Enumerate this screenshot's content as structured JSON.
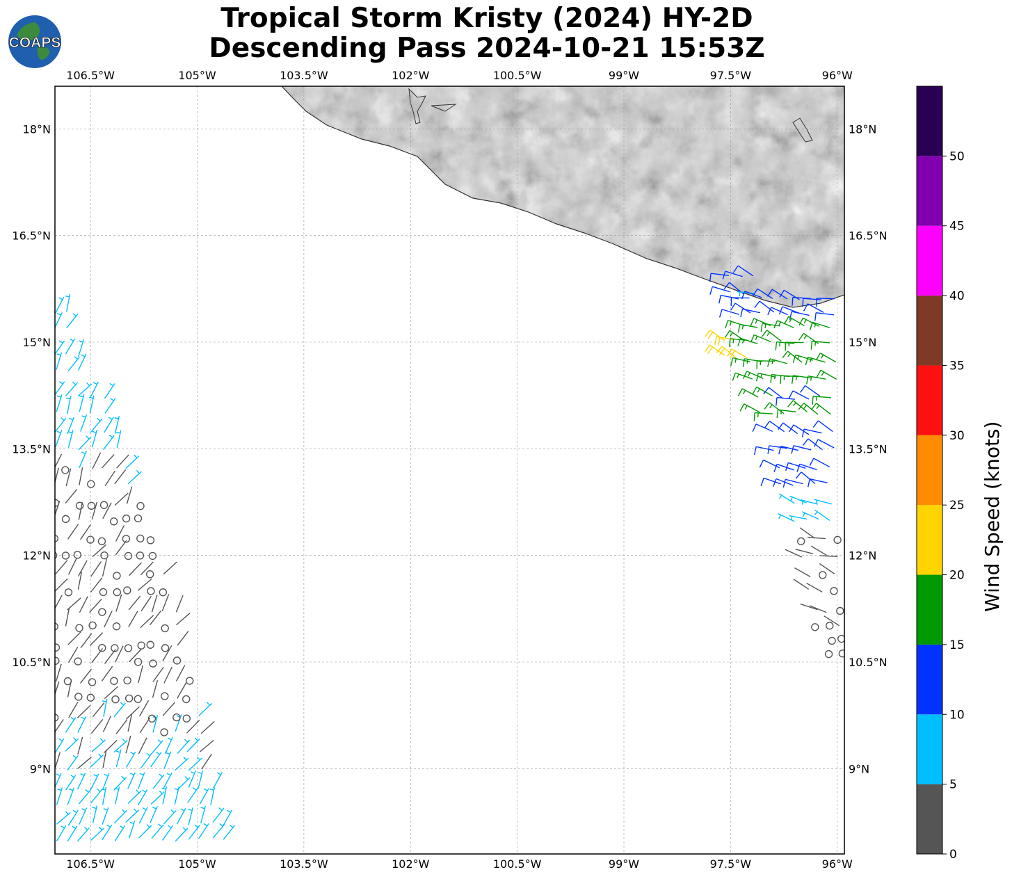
{
  "title": {
    "line1": "Tropical Storm Kristy (2024) HY-2D",
    "line2": "Descending Pass 2024-10-21 15:53Z"
  },
  "logo": {
    "text": "COAPS",
    "icon": "globe-logo-icon"
  },
  "map": {
    "projection": "PlateCarree",
    "lon_range": [
      -107.0,
      -95.9
    ],
    "lat_range": [
      7.8,
      18.6
    ],
    "lon_ticks": [
      {
        "value": -106.5,
        "label": "106.5°W"
      },
      {
        "value": -105.0,
        "label": "105°W"
      },
      {
        "value": -103.5,
        "label": "103.5°W"
      },
      {
        "value": -102.0,
        "label": "102°W"
      },
      {
        "value": -100.5,
        "label": "100.5°W"
      },
      {
        "value": -99.0,
        "label": "99°W"
      },
      {
        "value": -97.5,
        "label": "97.5°W"
      },
      {
        "value": -96.0,
        "label": "96°W"
      }
    ],
    "lat_ticks": [
      {
        "value": 18.0,
        "label": "18°N"
      },
      {
        "value": 16.5,
        "label": "16.5°N"
      },
      {
        "value": 15.0,
        "label": "15°N"
      },
      {
        "value": 13.5,
        "label": "13.5°N"
      },
      {
        "value": 12.0,
        "label": "12°N"
      },
      {
        "value": 10.5,
        "label": "10.5°N"
      },
      {
        "value": 9.0,
        "label": "9°N"
      }
    ],
    "grid": "dashed",
    "terrain": "grayscale relief over land (Mexico)"
  },
  "colorbar": {
    "title": "Wind Speed (knots)",
    "bins": [
      {
        "from": 0,
        "to": 5,
        "color": "#555555"
      },
      {
        "from": 5,
        "to": 10,
        "color": "#00bfff"
      },
      {
        "from": 10,
        "to": 15,
        "color": "#0033ff"
      },
      {
        "from": 15,
        "to": 20,
        "color": "#009900"
      },
      {
        "from": 20,
        "to": 25,
        "color": "#ffd400"
      },
      {
        "from": 25,
        "to": 30,
        "color": "#ff8c00"
      },
      {
        "from": 30,
        "to": 35,
        "color": "#ff1010"
      },
      {
        "from": 35,
        "to": 40,
        "color": "#7f3a26"
      },
      {
        "from": 40,
        "to": 45,
        "color": "#ff00ff"
      },
      {
        "from": 45,
        "to": 50,
        "color": "#8000b0"
      },
      {
        "from": 50,
        "to": 55,
        "color": "#2a0055"
      }
    ],
    "tick_labels": [
      "0",
      "5",
      "10",
      "15",
      "20",
      "25",
      "30",
      "35",
      "40",
      "45",
      "50"
    ]
  },
  "wind_swaths": [
    {
      "name": "west-swath",
      "rows": [
        {
          "lat": 15.2,
          "lon_from": -107.0,
          "lon_to": -106.8,
          "kt": 7
        },
        {
          "lat": 14.6,
          "lon_from": -107.0,
          "lon_to": -106.5,
          "kt": 7
        },
        {
          "lat": 14.0,
          "lon_from": -107.0,
          "lon_to": -106.3,
          "kt": 7
        },
        {
          "lat": 13.5,
          "lon_from": -107.0,
          "lon_to": -106.1,
          "kt": 7
        },
        {
          "lat": 13.0,
          "lon_from": -107.0,
          "lon_to": -105.9,
          "kt": 4
        },
        {
          "lat": 12.5,
          "lon_from": -107.0,
          "lon_to": -105.7,
          "kt": 3
        },
        {
          "lat": 12.0,
          "lon_from": -107.0,
          "lon_to": -105.6,
          "kt": 2
        },
        {
          "lat": 11.5,
          "lon_from": -107.0,
          "lon_to": -105.4,
          "kt": 3
        },
        {
          "lat": 11.0,
          "lon_from": -107.0,
          "lon_to": -105.3,
          "kt": 3
        },
        {
          "lat": 10.5,
          "lon_from": -107.0,
          "lon_to": -105.2,
          "kt": 2
        },
        {
          "lat": 10.0,
          "lon_from": -107.0,
          "lon_to": -105.0,
          "kt": 3
        },
        {
          "lat": 9.5,
          "lon_from": -107.0,
          "lon_to": -104.9,
          "kt": 4
        },
        {
          "lat": 9.0,
          "lon_from": -107.0,
          "lon_to": -104.8,
          "kt": 6
        },
        {
          "lat": 8.5,
          "lon_from": -107.0,
          "lon_to": -104.7,
          "kt": 7
        },
        {
          "lat": 8.0,
          "lon_from": -107.0,
          "lon_to": -104.6,
          "kt": 8
        }
      ]
    },
    {
      "name": "east-swath",
      "rows": [
        {
          "lat": 15.7,
          "lon_from": -97.5,
          "lon_to": -97.0,
          "kt": 10
        },
        {
          "lat": 15.4,
          "lon_from": -97.4,
          "lon_to": -96.0,
          "kt": 13
        },
        {
          "lat": 15.0,
          "lon_from": -97.3,
          "lon_to": -96.0,
          "kt": 17
        },
        {
          "lat": 14.8,
          "lon_from": -97.6,
          "lon_to": -97.2,
          "kt": 21
        },
        {
          "lat": 14.5,
          "lon_from": -97.2,
          "lon_to": -96.0,
          "kt": 17
        },
        {
          "lat": 14.0,
          "lon_from": -97.1,
          "lon_to": -96.0,
          "kt": 16
        },
        {
          "lat": 13.5,
          "lon_from": -96.9,
          "lon_to": -96.0,
          "kt": 13
        },
        {
          "lat": 13.0,
          "lon_from": -96.8,
          "lon_to": -96.0,
          "kt": 12
        },
        {
          "lat": 12.5,
          "lon_from": -96.6,
          "lon_to": -96.0,
          "kt": 7
        },
        {
          "lat": 12.0,
          "lon_from": -96.5,
          "lon_to": -95.9,
          "kt": 3
        },
        {
          "lat": 11.5,
          "lon_from": -96.4,
          "lon_to": -95.9,
          "kt": 3
        },
        {
          "lat": 11.0,
          "lon_from": -96.3,
          "lon_to": -95.9,
          "kt": 3
        },
        {
          "lat": 10.6,
          "lon_from": -96.1,
          "lon_to": -95.9,
          "kt": 2
        }
      ]
    }
  ]
}
